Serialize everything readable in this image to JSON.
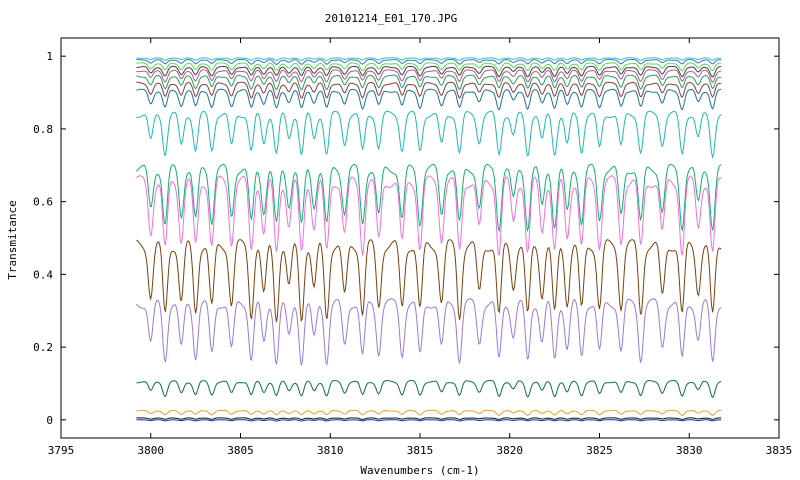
{
  "chart_data": {
    "type": "line",
    "title": "20101214_E01_170.JPG",
    "xlabel": "Wavenumbers (cm-1)",
    "ylabel": "Transmitance",
    "xlim": [
      3795,
      3835
    ],
    "ylim": [
      -0.05,
      1.05
    ],
    "x_ticks": [
      3795,
      3800,
      3805,
      3810,
      3815,
      3820,
      3825,
      3830,
      3835
    ],
    "y_ticks": [
      0,
      0.2,
      0.4,
      0.6,
      0.8,
      1
    ],
    "x_tick_labels": [
      "3795",
      "3800",
      "3805",
      "3810",
      "3815",
      "3820",
      "3825",
      "3830",
      "3835"
    ],
    "y_tick_labels": [
      "0",
      "0.2",
      "0.4",
      "0.6",
      "0.8",
      "1"
    ],
    "x_range_data": [
      3799.2,
      3831.8
    ],
    "absorption_lines_cm1": [
      3800.0,
      3800.8,
      3801.7,
      3802.5,
      3803.4,
      3804.5,
      3805.6,
      3806.3,
      3807.0,
      3807.7,
      3808.4,
      3809.1,
      3809.8,
      3810.8,
      3811.8,
      3812.7,
      3814.0,
      3815.0,
      3816.2,
      3817.2,
      3818.3,
      3819.4,
      3820.2,
      3821.0,
      3821.8,
      3822.5,
      3823.2,
      3824.0,
      3825.0,
      3826.2,
      3827.3,
      3828.5,
      3829.6,
      3830.5,
      3831.3
    ],
    "grid": false,
    "legend": "none",
    "series": [
      {
        "color": "#1f6f9f",
        "baseline": 0.905,
        "depth": 0.05
      },
      {
        "color": "#8b3a3a",
        "baseline": 0.925,
        "depth": 0.04
      },
      {
        "color": "#20a060",
        "baseline": 0.945,
        "depth": 0.035
      },
      {
        "color": "#c05090",
        "baseline": 0.96,
        "depth": 0.03
      },
      {
        "color": "#404040",
        "baseline": 0.97,
        "depth": 0.025
      },
      {
        "color": "#50e050",
        "baseline": 0.98,
        "depth": 0.02
      },
      {
        "color": "#4070d0",
        "baseline": 0.99,
        "depth": 0.012
      },
      {
        "color": "#30c0c0",
        "baseline": 0.995,
        "depth": 0.006
      },
      {
        "color": "#20b8b8",
        "baseline": 0.84,
        "depth": 0.11
      },
      {
        "color": "#10b070",
        "baseline": 0.69,
        "depth": 0.16
      },
      {
        "color": "#f070e0",
        "baseline": 0.655,
        "depth": 0.2
      },
      {
        "color": "#7a4010",
        "baseline": 0.48,
        "depth": 0.2
      },
      {
        "color": "#9a7ae0",
        "baseline": 0.32,
        "depth": 0.16
      },
      {
        "color": "#107040",
        "baseline": 0.105,
        "depth": 0.04
      },
      {
        "color": "#f0a020",
        "baseline": 0.025,
        "depth": 0.012
      },
      {
        "color": "#101010",
        "baseline": 0.005,
        "depth": 0.004
      },
      {
        "color": "#1030a0",
        "baseline": 0.0,
        "depth": 0.003
      }
    ]
  }
}
